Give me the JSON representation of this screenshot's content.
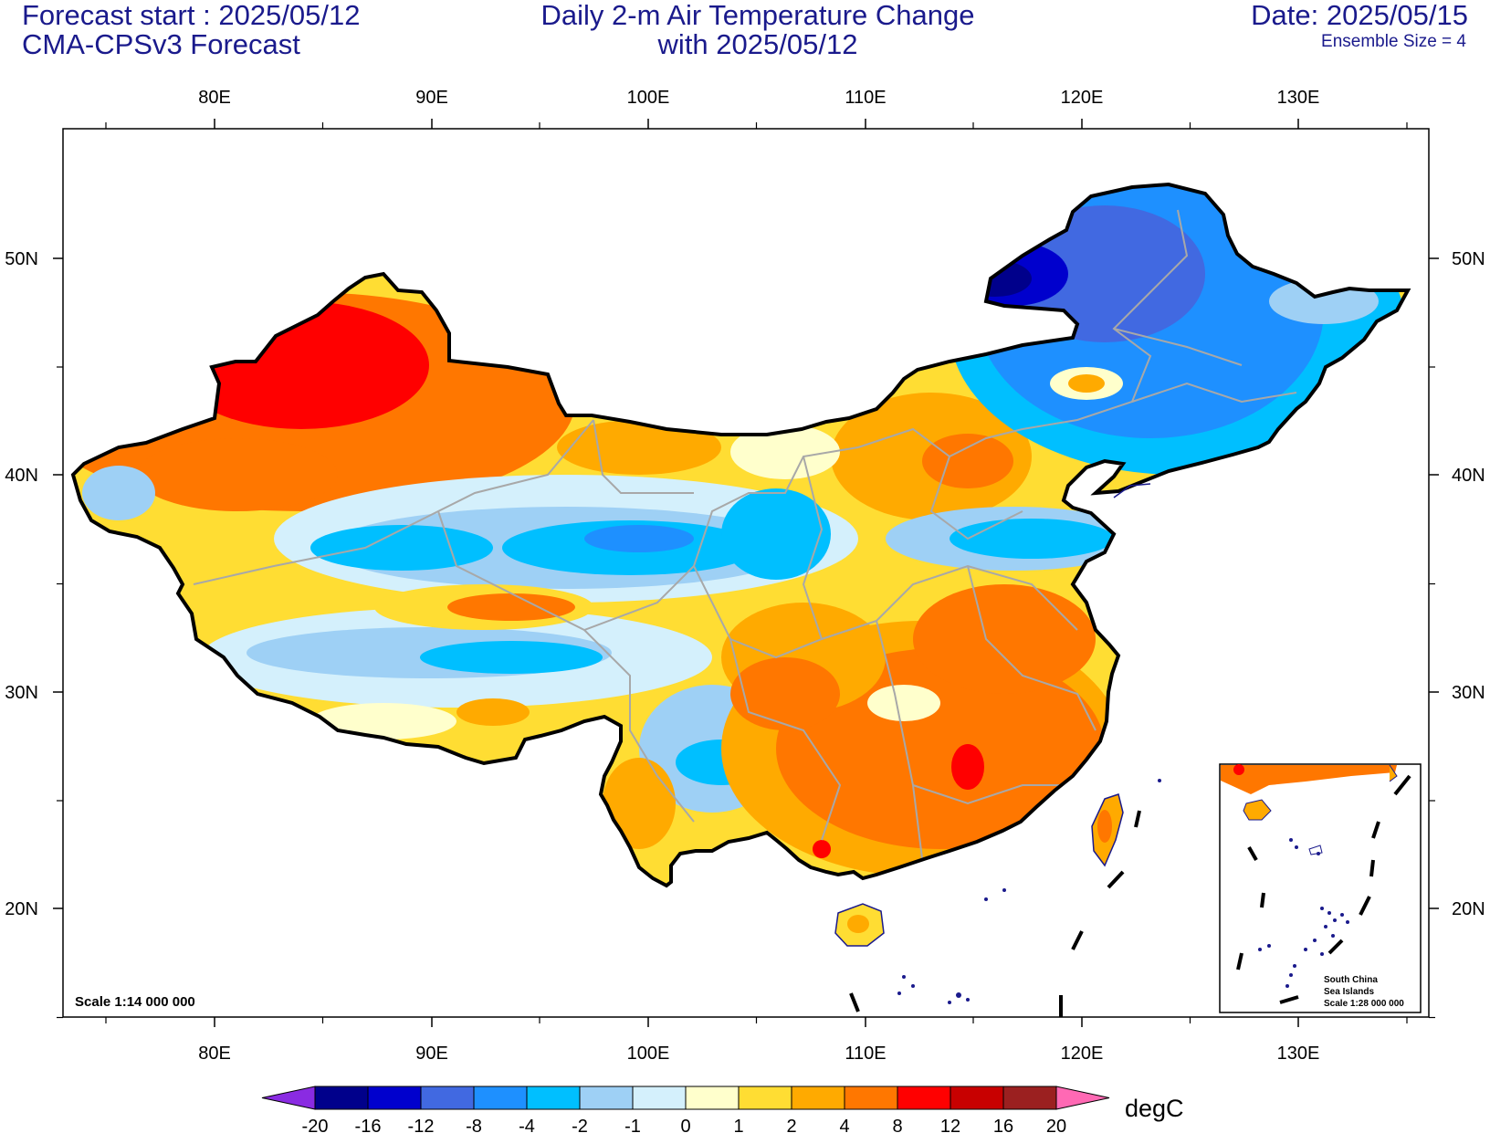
{
  "header": {
    "forecast_start": "Forecast start : 2025/05/12",
    "model": "CMA-CPSv3 Forecast",
    "title_line1": "Daily 2-m Air Temperature Change",
    "title_line2": "with 2025/05/12",
    "date": "Date: 2025/05/15",
    "ensemble": "Ensemble Size = 4"
  },
  "axes": {
    "lon_labels": [
      "80E",
      "90E",
      "100E",
      "110E",
      "120E",
      "130E"
    ],
    "lat_labels": [
      "50N",
      "40N",
      "30N",
      "20N"
    ]
  },
  "scale_text": "Scale 1:14 000 000",
  "inset": {
    "line1": "South China",
    "line2": "Sea Islands",
    "line3": "Scale 1:28 000 000"
  },
  "colorbar": {
    "unit": "degC",
    "labels": [
      "-20",
      "-16",
      "-12",
      "-8",
      "-4",
      "-2",
      "-1",
      "0",
      "1",
      "2",
      "4",
      "8",
      "12",
      "16",
      "20"
    ],
    "colors": [
      "#00008b",
      "#0000cd",
      "#4169e1",
      "#1e90ff",
      "#00bfff",
      "#9ed0f5",
      "#d4f0fc",
      "#ffffcc",
      "#ffdd33",
      "#ffaa00",
      "#ff7700",
      "#ff0000",
      "#c80000",
      "#9b2020"
    ],
    "low_arrow_color": "#8a2be2",
    "high_arrow_color": "#ff69b4"
  },
  "palette": {
    "border": "#000000",
    "province": "#a8a8a8",
    "coast": "#1a1a8c"
  }
}
